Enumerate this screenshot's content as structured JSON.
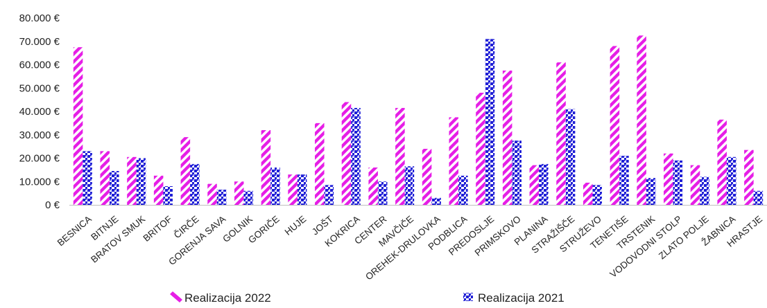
{
  "chart_data": {
    "type": "bar",
    "title": "",
    "xlabel": "",
    "ylabel": "",
    "ylim": [
      0,
      80000
    ],
    "yticks": [
      0,
      10000,
      20000,
      30000,
      40000,
      50000,
      60000,
      70000,
      80000
    ],
    "ytick_labels": [
      "0 €",
      "10.000 €",
      "20.000 €",
      "30.000 €",
      "40.000 €",
      "50.000 €",
      "60.000 €",
      "70.000 €",
      "80.000 €"
    ],
    "grid": false,
    "legend_position": "bottom",
    "categories": [
      "BESNICA",
      "BITNJE",
      "BRATOV SMUK",
      "BRITOF",
      "ČIRČE",
      "GORENJA SAVA",
      "GOLNIK",
      "GORIČE",
      "HUJE",
      "JOŠT",
      "KOKRICA",
      "CENTER",
      "MAVČIČE",
      "OREHEK-DRULOVKA",
      "PODBLICA",
      "PREDOSLJE",
      "PRIMSKOVO",
      "PLANINA",
      "STRAŽIŠČE",
      "STRUŽEVO",
      "TENETIŠE",
      "TRSTENIK",
      "VODOVODNI STOLP",
      "ZLATO POLJE",
      "ŽABNICA",
      "HRASTJE"
    ],
    "series": [
      {
        "name": "Realizacija 2022",
        "color": "#e61ee6",
        "pattern": "diagonal-stripes",
        "values": [
          67500,
          23000,
          20500,
          12500,
          29000,
          9000,
          10000,
          32000,
          13000,
          35000,
          44000,
          16000,
          41500,
          24000,
          37500,
          48000,
          57500,
          17000,
          61000,
          9500,
          68000,
          72500,
          22000,
          17000,
          36500,
          23500
        ]
      },
      {
        "name": "Realizacija 2021",
        "color": "#1f1fd6",
        "pattern": "checker",
        "values": [
          23000,
          14500,
          20000,
          8000,
          17500,
          6500,
          6000,
          16000,
          13000,
          8500,
          41500,
          10000,
          16500,
          3000,
          12500,
          71000,
          27500,
          17500,
          41000,
          8500,
          21000,
          11500,
          19000,
          12000,
          20500,
          6000
        ]
      }
    ]
  },
  "colors": {
    "axis": "#bfbfbf",
    "text": "#222222"
  }
}
